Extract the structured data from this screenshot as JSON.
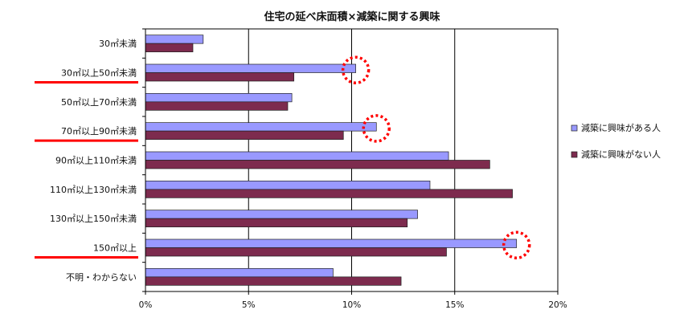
{
  "chart_data": {
    "type": "bar",
    "orientation": "horizontal",
    "title": "住宅の延べ床面積×減築に関する興味",
    "categories": [
      "30㎡未満",
      "30㎡以上50㎡未満",
      "50㎡以上70㎡未満",
      "70㎡以上90㎡未満",
      "90㎡以上110㎡未満",
      "110㎡以上130㎡未満",
      "130㎡以上150㎡未満",
      "150㎡以上",
      "不明・わからない"
    ],
    "series": [
      {
        "name": "減築に興味がある人",
        "color": "#9999ff",
        "values": [
          2.8,
          10.2,
          7.1,
          11.2,
          14.7,
          13.8,
          13.2,
          18.0,
          9.1
        ]
      },
      {
        "name": "減築に興味がない人",
        "color": "#7d2b4e",
        "values": [
          2.3,
          7.2,
          6.9,
          9.6,
          16.7,
          17.8,
          12.7,
          14.6,
          12.4
        ]
      }
    ],
    "xlim": [
      0,
      20
    ],
    "x_ticks": [
      "0%",
      "5%",
      "10%",
      "15%",
      "20%"
    ],
    "gridlines": true,
    "legend_position": "right",
    "highlighted_categories": [
      1,
      3,
      7
    ],
    "highlight_color": "#ff0000",
    "circled_bars": [
      {
        "category": 1,
        "series": 0
      },
      {
        "category": 3,
        "series": 0
      },
      {
        "category": 7,
        "series": 0
      }
    ]
  }
}
